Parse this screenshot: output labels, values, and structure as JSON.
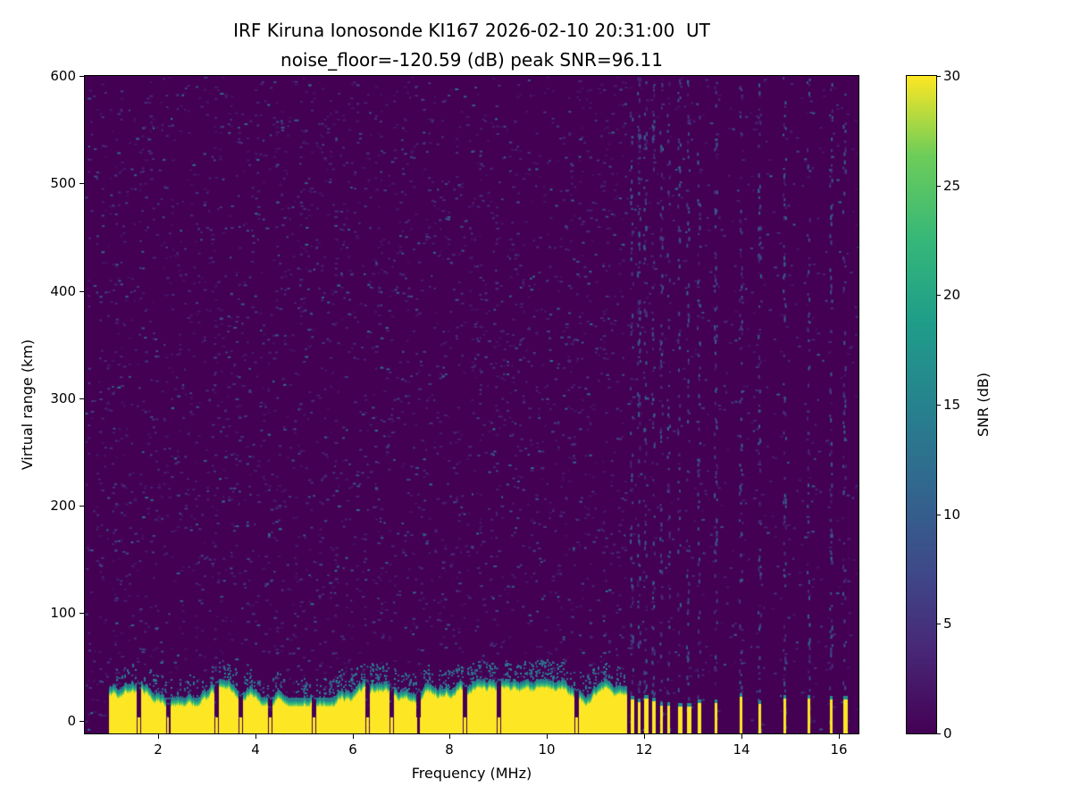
{
  "chart_data": {
    "type": "heatmap",
    "title": "IRF Kiruna Ionosonde KI167 2026-02-10 20:31:00  UT",
    "subtitle": "noise_floor=-120.59 (dB) peak SNR=96.11",
    "station": "IRF Kiruna Ionosonde KI167",
    "timestamp_ut": "2026-02-10 20:31:00 UT",
    "noise_floor_db": -120.59,
    "peak_snr_db": 96.11,
    "xlabel": "Frequency (MHz)",
    "ylabel": "Virtual range (km)",
    "xlim": [
      0.5,
      16.4
    ],
    "ylim": [
      -12,
      600
    ],
    "xticks": [
      2,
      4,
      6,
      8,
      10,
      12,
      14,
      16
    ],
    "yticks": [
      0,
      100,
      200,
      300,
      400,
      500,
      600
    ],
    "grid": false,
    "colorbar": {
      "label": "SNR (dB)",
      "min": 0,
      "max": 30,
      "ticks": [
        0,
        5,
        10,
        15,
        20,
        25,
        30
      ],
      "colormap": "viridis"
    },
    "background": {
      "snr_db": 0,
      "noise_speckle_snr_max_db": 8
    },
    "ground_echo_band": {
      "freq_start_mhz": 1.0,
      "freq_end_mhz": 11.62,
      "top_virtual_range_km": 30,
      "top_jitter_km": 8,
      "snr_db": 30,
      "notches_mhz": [
        1.6,
        2.2,
        3.2,
        3.7,
        4.3,
        5.2,
        6.3,
        6.8,
        7.35,
        8.3,
        9.0,
        10.6
      ]
    },
    "tx_stripes_mhz": [
      11.72,
      11.86,
      12.0,
      12.15,
      12.32,
      12.48,
      12.7,
      12.88,
      13.1,
      13.45,
      13.95,
      14.35,
      14.86,
      15.36,
      15.82,
      16.08
    ],
    "tx_stripe_top_km": 22,
    "busy_noise_columns_mhz": [
      11.72,
      11.86,
      12.0,
      12.15,
      12.32,
      12.48,
      12.7,
      12.88,
      13.1,
      13.45,
      13.95,
      14.35,
      14.86,
      15.36,
      15.82,
      16.08
    ]
  }
}
